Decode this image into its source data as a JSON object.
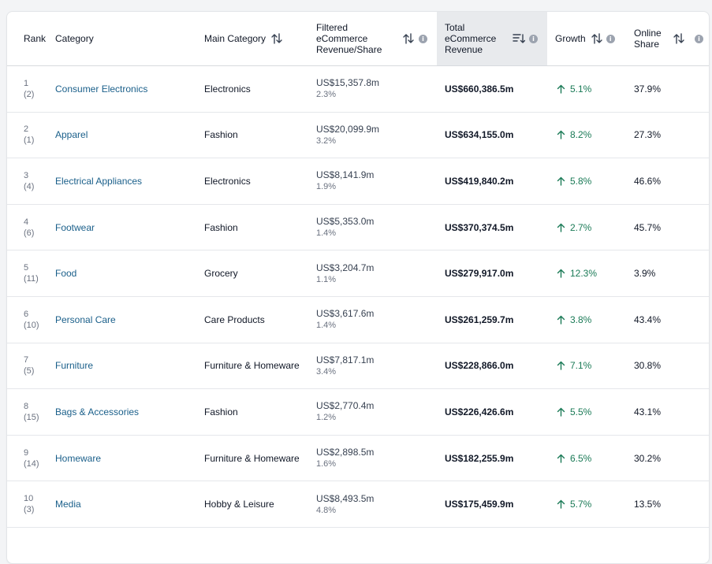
{
  "table": {
    "headers": {
      "rank": "Rank",
      "category": "Category",
      "main_category": "Main Category",
      "filtered_line1": "Filtered",
      "filtered_line2": "eCommerce",
      "filtered_line3": "Revenue/Share",
      "total_line1": "Total",
      "total_line2": "eCommerce",
      "total_line3": "Revenue",
      "growth": "Growth",
      "online_line1": "Online",
      "online_line2": "Share"
    },
    "rows": [
      {
        "rank": "1",
        "prev_rank": "(2)",
        "category": "Consumer Electronics",
        "main_category": "Electronics",
        "filtered_revenue": "US$15,357.8m",
        "filtered_share": "2.3%",
        "total_revenue": "US$660,386.5m",
        "growth": "5.1%",
        "online_share": "37.9%"
      },
      {
        "rank": "2",
        "prev_rank": "(1)",
        "category": "Apparel",
        "main_category": "Fashion",
        "filtered_revenue": "US$20,099.9m",
        "filtered_share": "3.2%",
        "total_revenue": "US$634,155.0m",
        "growth": "8.2%",
        "online_share": "27.3%"
      },
      {
        "rank": "3",
        "prev_rank": "(4)",
        "category": "Electrical Appliances",
        "main_category": "Electronics",
        "filtered_revenue": "US$8,141.9m",
        "filtered_share": "1.9%",
        "total_revenue": "US$419,840.2m",
        "growth": "5.8%",
        "online_share": "46.6%"
      },
      {
        "rank": "4",
        "prev_rank": "(6)",
        "category": "Footwear",
        "main_category": "Fashion",
        "filtered_revenue": "US$5,353.0m",
        "filtered_share": "1.4%",
        "total_revenue": "US$370,374.5m",
        "growth": "2.7%",
        "online_share": "45.7%"
      },
      {
        "rank": "5",
        "prev_rank": "(11)",
        "category": "Food",
        "main_category": "Grocery",
        "filtered_revenue": "US$3,204.7m",
        "filtered_share": "1.1%",
        "total_revenue": "US$279,917.0m",
        "growth": "12.3%",
        "online_share": "3.9%"
      },
      {
        "rank": "6",
        "prev_rank": "(10)",
        "category": "Personal Care",
        "main_category": "Care Products",
        "filtered_revenue": "US$3,617.6m",
        "filtered_share": "1.4%",
        "total_revenue": "US$261,259.7m",
        "growth": "3.8%",
        "online_share": "43.4%"
      },
      {
        "rank": "7",
        "prev_rank": "(5)",
        "category": "Furniture",
        "main_category": "Furniture & Homeware",
        "filtered_revenue": "US$7,817.1m",
        "filtered_share": "3.4%",
        "total_revenue": "US$228,866.0m",
        "growth": "7.1%",
        "online_share": "30.8%"
      },
      {
        "rank": "8",
        "prev_rank": "(15)",
        "category": "Bags & Accessories",
        "main_category": "Fashion",
        "filtered_revenue": "US$2,770.4m",
        "filtered_share": "1.2%",
        "total_revenue": "US$226,426.6m",
        "growth": "5.5%",
        "online_share": "43.1%"
      },
      {
        "rank": "9",
        "prev_rank": "(14)",
        "category": "Homeware",
        "main_category": "Furniture & Homeware",
        "filtered_revenue": "US$2,898.5m",
        "filtered_share": "1.6%",
        "total_revenue": "US$182,255.9m",
        "growth": "6.5%",
        "online_share": "30.2%"
      },
      {
        "rank": "10",
        "prev_rank": "(3)",
        "category": "Media",
        "main_category": "Hobby & Leisure",
        "filtered_revenue": "US$8,493.5m",
        "filtered_share": "4.8%",
        "total_revenue": "US$175,459.9m",
        "growth": "5.7%",
        "online_share": "13.5%"
      }
    ]
  },
  "icons": {
    "sort": "sort-arrows-icon",
    "sorted_desc": "sort-descending-icon",
    "info": "info-icon",
    "growth_up": "arrow-up-icon"
  },
  "colors": {
    "link": "#1a5f8a",
    "growth_positive": "#1a7a56",
    "sorted_column_bg": "#e8eaed"
  }
}
